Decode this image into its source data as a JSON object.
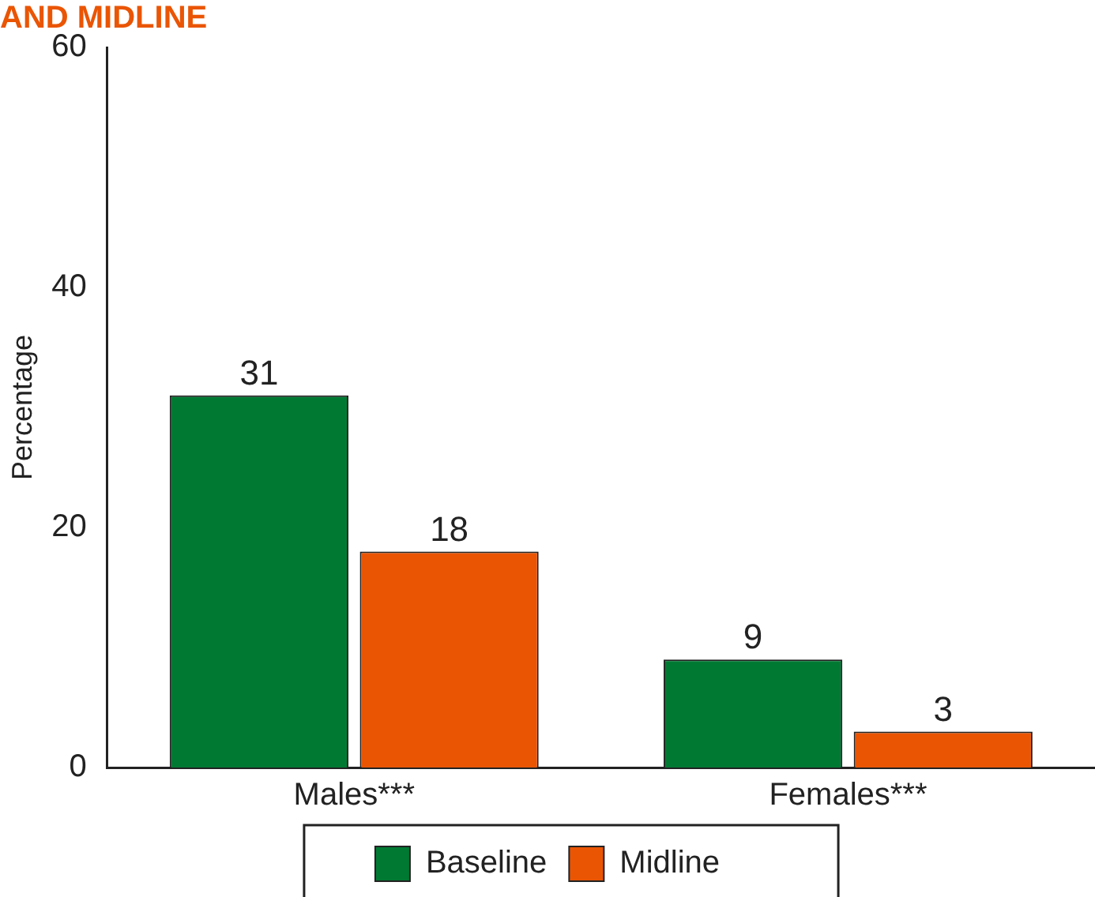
{
  "chart_data": {
    "type": "bar",
    "title": "AND MIDLINE",
    "ylabel": "Percentage",
    "categories": [
      "Males***",
      "Females***"
    ],
    "series": [
      {
        "name": "Baseline",
        "color": "#007a33",
        "values": [
          31,
          9
        ]
      },
      {
        "name": "Midline",
        "color": "#ea5504",
        "values": [
          18,
          3
        ]
      }
    ],
    "ylim": [
      0,
      60
    ],
    "yticks": [
      0,
      20,
      40,
      60
    ],
    "grid": false,
    "legend": "bottom",
    "data_labels": true
  }
}
